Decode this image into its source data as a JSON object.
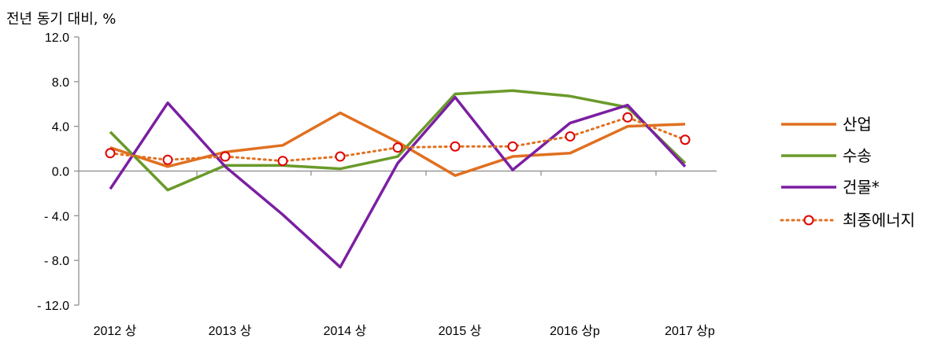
{
  "chart_data": {
    "type": "line",
    "ylabel": "전년 동기 대비, %",
    "ylim": [
      -12,
      12
    ],
    "yticks": [
      12,
      8,
      4,
      0,
      -4,
      -8,
      -12
    ],
    "ytick_labels": [
      "12.0",
      "8.0",
      "4.0",
      "0.0",
      "- 4.0",
      "- 8.0",
      "- 12.0"
    ],
    "x_points": 11,
    "xtick_labels": [
      "2012 상",
      "2013 상",
      "2014 상",
      "2015 상",
      "2016 상p",
      "2017 상p"
    ],
    "xtick_label_indices": [
      0,
      2,
      4,
      6,
      8,
      10
    ],
    "legend_position": "right",
    "grid": false,
    "series": [
      {
        "name": "산업",
        "color": "#E07020",
        "style": "solid",
        "values": [
          2.1,
          0.4,
          1.7,
          2.3,
          5.2,
          2.6,
          -0.4,
          1.3,
          1.6,
          4.0,
          4.2
        ]
      },
      {
        "name": "수송",
        "color": "#6A9A2A",
        "style": "solid",
        "values": [
          3.5,
          -1.7,
          0.5,
          0.5,
          0.2,
          1.3,
          6.9,
          7.2,
          6.7,
          5.7,
          0.7
        ]
      },
      {
        "name": "건물*",
        "color": "#7B1FA2",
        "style": "solid",
        "values": [
          -1.6,
          6.1,
          0.4,
          -3.9,
          -8.6,
          0.7,
          6.6,
          0.1,
          4.3,
          5.9,
          0.4
        ]
      },
      {
        "name": "최종에너지",
        "color": "#E07020",
        "style": "dotted",
        "marker": "circle",
        "marker_color": "#E00000",
        "values": [
          1.6,
          1.0,
          1.3,
          0.9,
          1.3,
          2.1,
          2.2,
          2.2,
          3.1,
          4.8,
          2.8
        ]
      }
    ]
  }
}
